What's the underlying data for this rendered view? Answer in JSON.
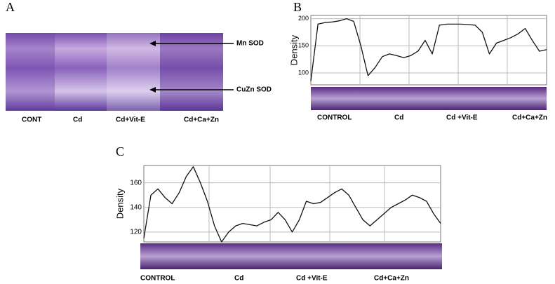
{
  "panel_a": {
    "label": "A",
    "lanes": [
      "CONT",
      "Cd",
      "Cd+Vit-E",
      "Cd+Ca+Zn"
    ],
    "annotations": [
      "Mn SOD",
      "CuZn SOD"
    ]
  },
  "chart_data": [
    {
      "type": "line",
      "label": "B",
      "y_label": "Density",
      "ylim": [
        78,
        206
      ],
      "yticks": [
        100,
        150,
        200
      ],
      "grid": true,
      "color": "#111111",
      "lanes": [
        "CONTROL",
        "Cd",
        "Cd +Vit-E",
        "Cd+Ca+Zn"
      ],
      "values": [
        85,
        190,
        193,
        194,
        196,
        200,
        195,
        150,
        95,
        110,
        130,
        135,
        132,
        128,
        132,
        140,
        160,
        135,
        188,
        190,
        190,
        190,
        189,
        188,
        175,
        135,
        155,
        160,
        165,
        172,
        182,
        160,
        140,
        143
      ]
    },
    {
      "type": "line",
      "label": "C",
      "y_label": "Density",
      "ylim": [
        112,
        174
      ],
      "yticks": [
        120,
        140,
        160
      ],
      "grid": true,
      "color": "#111111",
      "lanes": [
        "CONTROL",
        "Cd",
        "Cd +Vit-E",
        "Cd+Ca+Zn"
      ],
      "values": [
        115,
        150,
        155,
        148,
        143,
        152,
        165,
        173,
        160,
        145,
        125,
        112,
        120,
        125,
        127,
        126,
        125,
        128,
        130,
        136,
        130,
        120,
        130,
        145,
        143,
        144,
        148,
        152,
        155,
        150,
        140,
        130,
        125,
        130,
        135,
        140,
        143,
        146,
        150,
        148,
        145,
        135,
        127
      ]
    }
  ]
}
